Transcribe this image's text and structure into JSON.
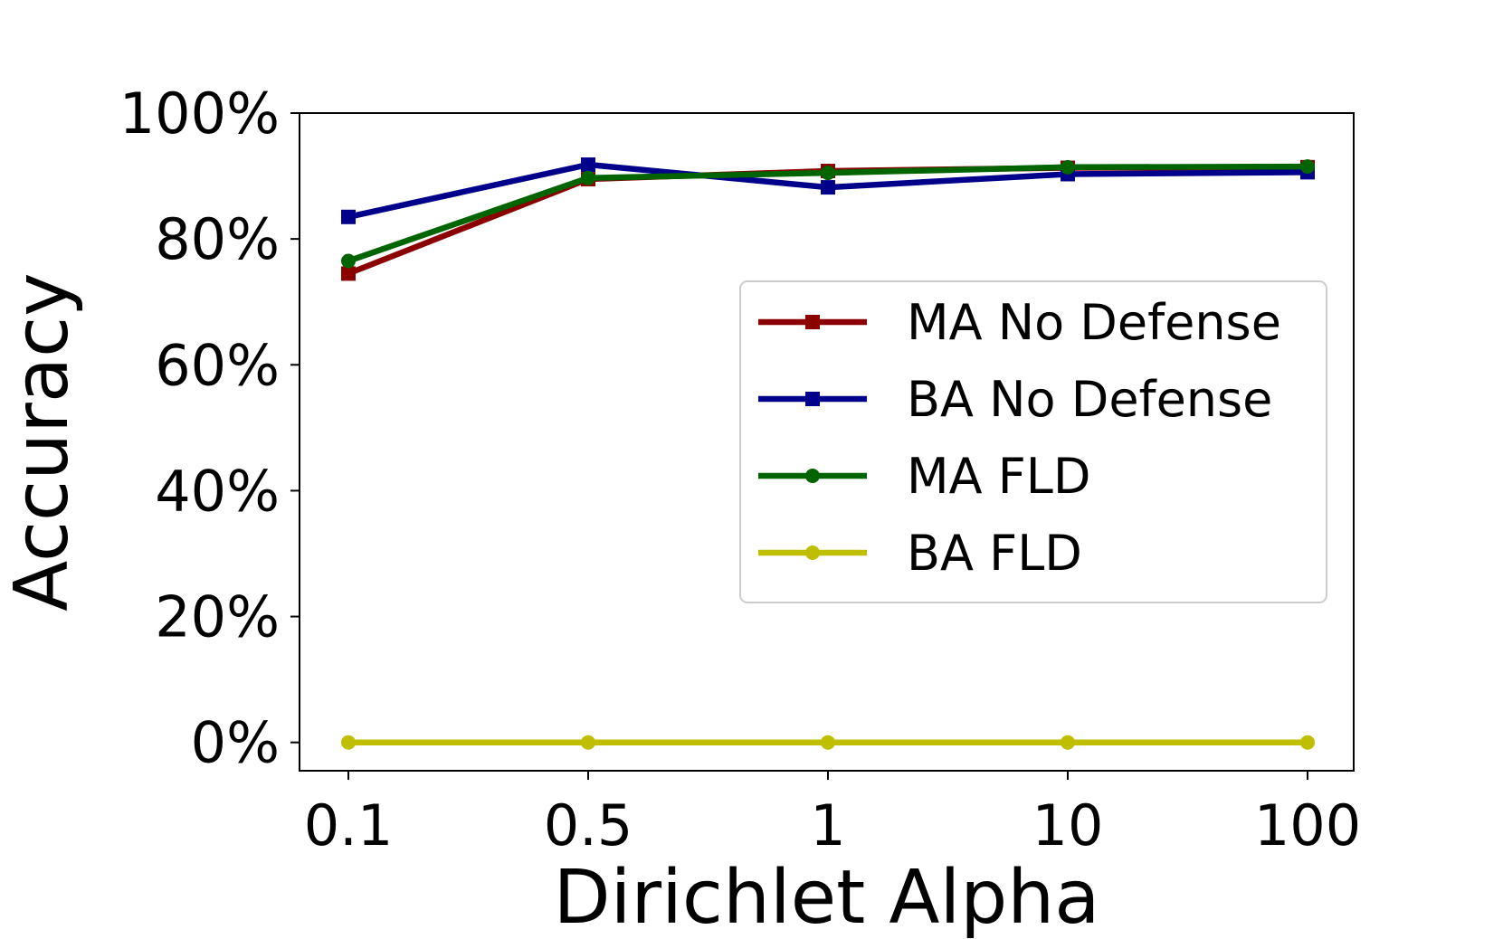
{
  "chart_data": {
    "type": "line",
    "title": "",
    "xlabel": "Dirichlet Alpha",
    "ylabel": "Accuracy",
    "categories": [
      "0.1",
      "0.5",
      "1",
      "10",
      "100"
    ],
    "y_ticks": [
      "0%",
      "20%",
      "40%",
      "60%",
      "80%",
      "100%"
    ],
    "ylim": [
      -4.5,
      100
    ],
    "grid": false,
    "legend_position": "center-right",
    "series": [
      {
        "name": "MA No Defense",
        "color": "#8B0000",
        "marker": "square",
        "values": [
          74.5,
          89.5,
          90.8,
          91.3,
          91.4
        ]
      },
      {
        "name": "BA No Defense",
        "color": "#00008B",
        "marker": "square",
        "values": [
          83.5,
          91.8,
          88.2,
          90.3,
          90.6
        ]
      },
      {
        "name": "MA FLD",
        "color": "#006400",
        "marker": "circle",
        "values": [
          76.5,
          89.7,
          90.5,
          91.4,
          91.5
        ]
      },
      {
        "name": "BA FLD",
        "color": "#BFBF00",
        "marker": "circle",
        "values": [
          0.0,
          0.0,
          0.0,
          0.0,
          0.0
        ]
      }
    ]
  }
}
